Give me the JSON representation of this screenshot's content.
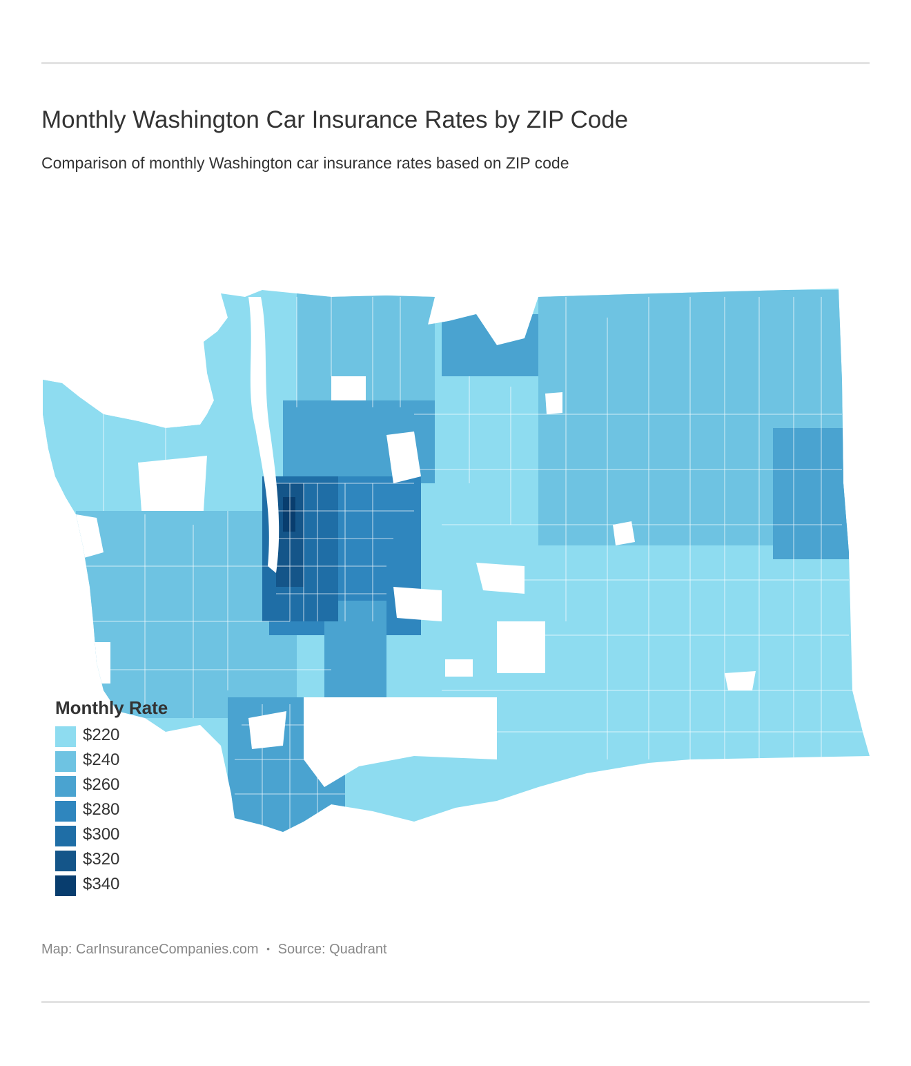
{
  "header": {
    "title": "Monthly Washington Car Insurance Rates by ZIP Code",
    "subtitle": "Comparison of monthly Washington car insurance rates based on ZIP code"
  },
  "map": {
    "region": "Washington",
    "fill_scale": [
      "#8edcf0",
      "#6ec3e2",
      "#4aa3d0",
      "#2f86be",
      "#1f6ea6",
      "#145589",
      "#083d6e"
    ]
  },
  "legend": {
    "title": "Monthly Rate",
    "items": [
      {
        "label": "$220",
        "color": "#8edcf0"
      },
      {
        "label": "$240",
        "color": "#6ec3e2"
      },
      {
        "label": "$260",
        "color": "#4aa3d0"
      },
      {
        "label": "$280",
        "color": "#2f86be"
      },
      {
        "label": "$300",
        "color": "#1f6ea6"
      },
      {
        "label": "$320",
        "color": "#145589"
      },
      {
        "label": "$340",
        "color": "#083d6e"
      }
    ]
  },
  "footer": {
    "map_credit": "Map: CarInsuranceCompanies.com",
    "separator": "•",
    "source": "Source: Quadrant"
  }
}
